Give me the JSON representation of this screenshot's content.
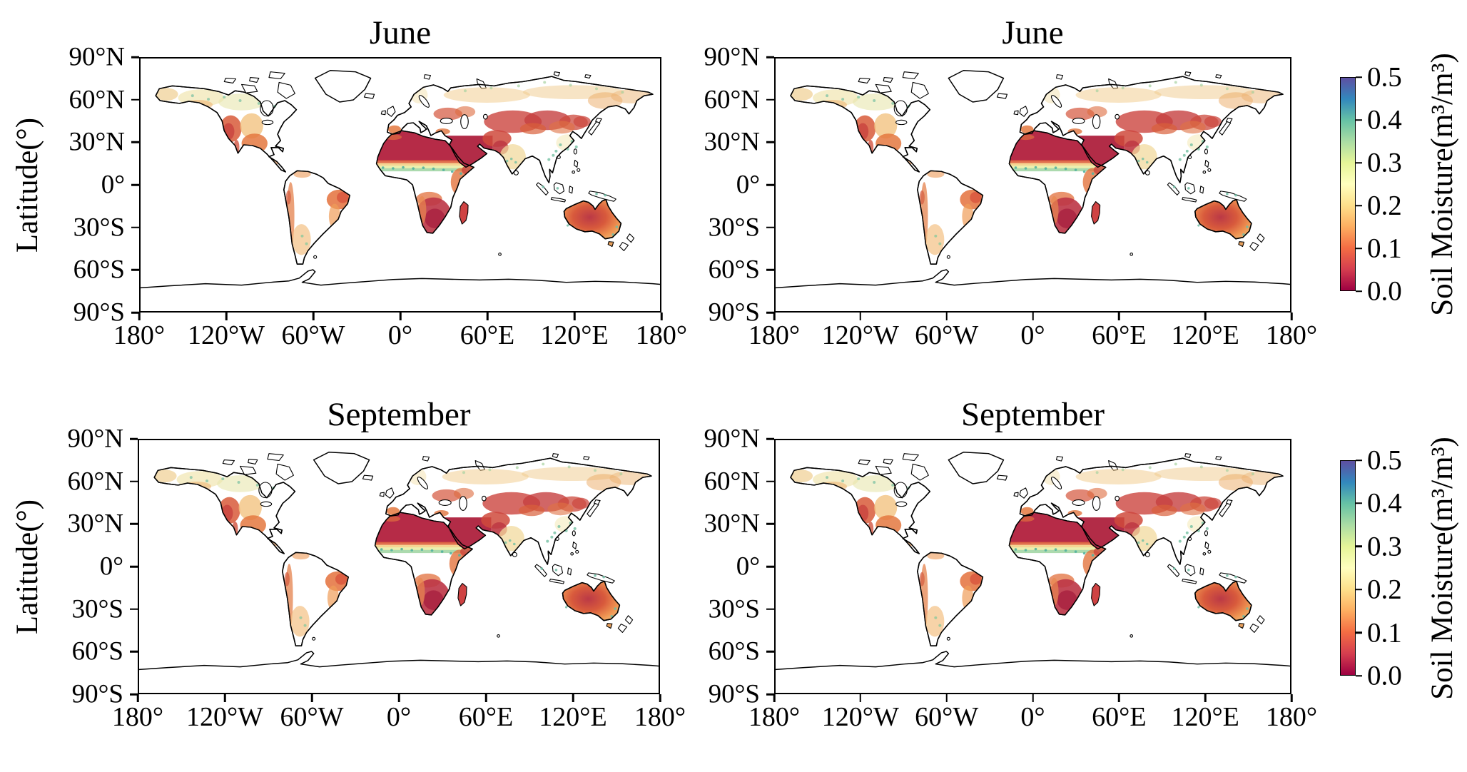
{
  "figure": {
    "rows": [
      {
        "ylabel": "Latitude(°)",
        "panels": [
          {
            "title": "June"
          },
          {
            "title": "June"
          }
        ]
      },
      {
        "ylabel": "Latitude(°)",
        "panels": [
          {
            "title": "September"
          },
          {
            "title": "September"
          }
        ]
      }
    ],
    "axes": {
      "lat_ticks": [
        "90°N",
        "60°N",
        "30°N",
        "0°",
        "30°S",
        "60°S",
        "90°S"
      ],
      "lon_ticks": [
        "180°",
        "120°W",
        "60°W",
        "0°",
        "60°E",
        "120°E",
        "180°"
      ]
    },
    "colorbar": {
      "label": "Soil Moisture(m³/m³)",
      "ticks": [
        "0.0",
        "0.1",
        "0.2",
        "0.3",
        "0.4",
        "0.5"
      ]
    },
    "colormap": {
      "name": "Spectral",
      "stops": [
        "#9e0142",
        "#d53e4f",
        "#f46d43",
        "#fdae61",
        "#fee08b",
        "#ffffbf",
        "#e6f598",
        "#abdda4",
        "#66c2a5",
        "#3288bd",
        "#5e4fa2"
      ],
      "vmin": 0.0,
      "vmax": 0.5
    }
  },
  "chart_data": {
    "type": "heatmap",
    "subtype": "global-map-grid",
    "variable": "Soil Moisture (m³/m³)",
    "projection": "equirectangular",
    "lon_range": [
      -180,
      180
    ],
    "lat_range": [
      -90,
      90
    ],
    "lat_tick_values": [
      90,
      60,
      30,
      0,
      -30,
      -60,
      -90
    ],
    "lon_tick_values": [
      -180,
      -120,
      -60,
      0,
      60,
      120,
      180
    ],
    "colormap": "Spectral",
    "color_range": [
      0.0,
      0.5
    ],
    "colorbar_ticks": [
      0.0,
      0.1,
      0.2,
      0.3,
      0.4,
      0.5
    ],
    "panels": [
      {
        "row": 0,
        "col": 0,
        "title": "June"
      },
      {
        "row": 0,
        "col": 1,
        "title": "June"
      },
      {
        "row": 1,
        "col": 0,
        "title": "September"
      },
      {
        "row": 1,
        "col": 1,
        "title": "September"
      }
    ],
    "approx_regional_values_m3_per_m3": {
      "Sahara Desert": 0.05,
      "Arabian Peninsula": 0.05,
      "Iran / Central Asia": 0.08,
      "Sahel transition belt": 0.3,
      "Congo basin & humid tropics": "white (masked / no data)",
      "Southern Africa": 0.07,
      "East Africa / Horn": 0.1,
      "Madagascar": 0.08,
      "Australia interior": 0.08,
      "Australia coastal fringe": 0.15,
      "Western United States / Mexico": 0.1,
      "Great Plains": 0.18,
      "Eastern United States": "white (masked)",
      "Boreal Canada / Alaska": 0.25,
      "Siberia northern belt": 0.2,
      "Northwest India / Pakistan": 0.08,
      "Central India": 0.2,
      "Northeast China / Mongolia": 0.1,
      "Northeast Brazil": 0.12,
      "Amazon basin": "white (masked)",
      "Argentina / Patagonia": 0.18,
      "Greenland & Antarctica": "white (no data)"
    }
  }
}
